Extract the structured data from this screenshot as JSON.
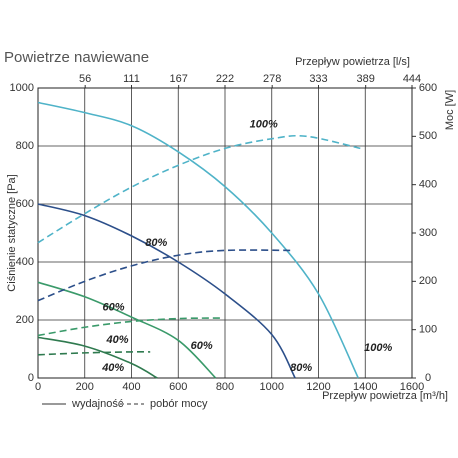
{
  "chart_data": {
    "type": "line",
    "title": "Powietrze nawiewane",
    "x_label": "Przepływ powietrza [m³/h]",
    "x2_label": "Przepływ powietrza [l/s]",
    "y_label": "Ciśnienie statyczne [Pa]",
    "y2_label": "Moc [W]",
    "xlim": [
      0,
      1600
    ],
    "xticks": [
      0,
      200,
      400,
      600,
      800,
      1000,
      1200,
      1400,
      1600
    ],
    "x2lim": [
      0,
      444
    ],
    "x2ticks": [
      56,
      111,
      167,
      222,
      278,
      333,
      389,
      444
    ],
    "ylim": [
      0,
      1000
    ],
    "yticks": [
      0,
      200,
      400,
      600,
      800,
      1000
    ],
    "y2lim": [
      0,
      600
    ],
    "y2ticks": [
      0,
      100,
      200,
      300,
      400,
      500,
      600
    ],
    "grid": true,
    "legend": [
      {
        "label": "wydajność",
        "style": "solid"
      },
      {
        "label": "pobór mocy",
        "style": "dashed"
      }
    ],
    "series": [
      {
        "name": "100%",
        "color": "#4fb3c8",
        "style": "solid",
        "x": [
          0,
          200,
          400,
          600,
          800,
          1000,
          1200,
          1370
        ],
        "values": [
          950,
          915,
          870,
          780,
          660,
          500,
          290,
          0
        ]
      },
      {
        "name": "80%",
        "color": "#2c4f8a",
        "style": "solid",
        "x": [
          0,
          200,
          400,
          600,
          800,
          1000,
          1100
        ],
        "values": [
          600,
          560,
          490,
          400,
          290,
          150,
          0
        ]
      },
      {
        "name": "60%",
        "color": "#3a9a6a",
        "style": "solid",
        "x": [
          0,
          200,
          400,
          600,
          760
        ],
        "values": [
          330,
          280,
          210,
          130,
          0
        ]
      },
      {
        "name": "40%",
        "color": "#2f7a4f",
        "style": "solid",
        "x": [
          0,
          200,
          400,
          510
        ],
        "values": [
          140,
          110,
          50,
          0
        ]
      },
      {
        "name": "100%",
        "color": "#4fb3c8",
        "style": "dashed",
        "axis": "y2",
        "x": [
          0,
          200,
          400,
          600,
          800,
          1000,
          1150,
          1380
        ],
        "values": [
          280,
          340,
          395,
          440,
          475,
          495,
          500,
          475
        ]
      },
      {
        "name": "80%",
        "color": "#2c4f8a",
        "style": "dashed",
        "axis": "y2",
        "x": [
          0,
          200,
          400,
          600,
          800,
          1080
        ],
        "values": [
          160,
          200,
          232,
          254,
          264,
          264
        ]
      },
      {
        "name": "60%",
        "color": "#3a9a6a",
        "style": "dashed",
        "axis": "y2",
        "x": [
          0,
          200,
          400,
          600,
          780
        ],
        "values": [
          88,
          105,
          117,
          123,
          124
        ]
      },
      {
        "name": "40%",
        "color": "#2f7a4f",
        "style": "dashed",
        "axis": "y2",
        "x": [
          0,
          200,
          400,
          480
        ],
        "values": [
          48,
          52,
          54,
          54
        ]
      }
    ]
  }
}
